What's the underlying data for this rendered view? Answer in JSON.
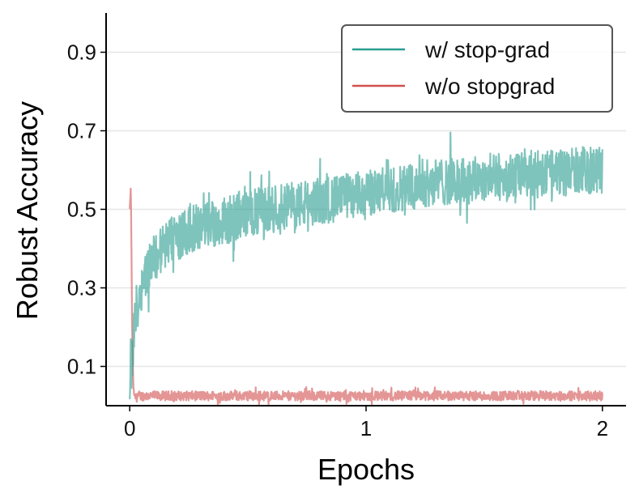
{
  "chart_data": {
    "type": "line",
    "title": "",
    "xlabel": "Epochs",
    "ylabel": "Robust Accuracy",
    "xlim": [
      -0.1,
      2.1
    ],
    "ylim": [
      0.0,
      1.0
    ],
    "xticks": [
      0,
      1,
      2
    ],
    "xtick_labels": [
      "0",
      "1",
      "2"
    ],
    "yticks": [
      0.1,
      0.3,
      0.5,
      0.7,
      0.9
    ],
    "ytick_labels": [
      "0.1",
      "0.3",
      "0.5",
      "0.7",
      "0.9"
    ],
    "grid": "horizontal",
    "legend_position": "top-right",
    "colors": {
      "teal": "#2a9d8f",
      "red": "#d1504f",
      "grid": "#e6e6e6",
      "axis": "#000000"
    },
    "series": [
      {
        "name": "w/ stop-grad",
        "color": "#2a9d8f",
        "noise": 0.06,
        "x": [
          0,
          0.01,
          0.02,
          0.04,
          0.06,
          0.1,
          0.15,
          0.2,
          0.3,
          0.4,
          0.5,
          0.6,
          0.7,
          0.8,
          0.9,
          1.0,
          1.1,
          1.2,
          1.3,
          1.4,
          1.5,
          1.6,
          1.7,
          1.8,
          1.9,
          2.0
        ],
        "y": [
          0.06,
          0.12,
          0.2,
          0.28,
          0.33,
          0.37,
          0.41,
          0.43,
          0.46,
          0.47,
          0.49,
          0.5,
          0.51,
          0.52,
          0.53,
          0.54,
          0.55,
          0.56,
          0.57,
          0.57,
          0.58,
          0.58,
          0.59,
          0.59,
          0.6,
          0.6
        ]
      },
      {
        "name": "w/o stopgrad",
        "color": "#d1504f",
        "noise": 0.012,
        "x": [
          0,
          0.005,
          0.01,
          0.015,
          0.02,
          0.05,
          0.5,
          1.0,
          1.5,
          2.0
        ],
        "y": [
          0.5,
          0.56,
          0.2,
          0.05,
          0.02,
          0.025,
          0.025,
          0.025,
          0.025,
          0.025
        ]
      }
    ]
  }
}
